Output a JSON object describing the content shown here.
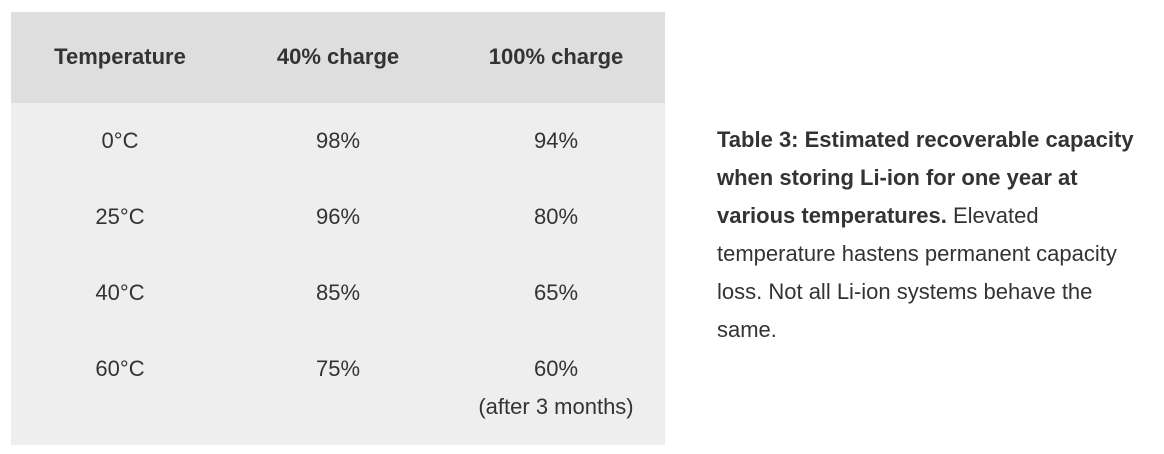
{
  "table": {
    "columns": [
      "Temperature",
      "40% charge",
      "100% charge"
    ],
    "rows": [
      {
        "temperature": "0°C",
        "charge40": "98%",
        "charge100": "94%",
        "note": ""
      },
      {
        "temperature": "25°C",
        "charge40": "96%",
        "charge100": "80%",
        "note": ""
      },
      {
        "temperature": "40°C",
        "charge40": "85%",
        "charge100": "65%",
        "note": ""
      },
      {
        "temperature": "60°C",
        "charge40": "75%",
        "charge100": "60%",
        "note": "(after 3 months)"
      }
    ]
  },
  "caption": {
    "bold_text": "Table 3: Estimated recoverable capacity when storing Li-ion for one year at various temperatures.",
    "regular_text": "Elevated temperature hastens permanent capacity loss. Not all Li-ion systems behave the same."
  },
  "colors": {
    "header_bg": "#dedede",
    "body_bg": "#eeeeee",
    "text": "#333333",
    "page_bg": "#ffffff"
  },
  "chart_data": {
    "type": "table",
    "title": "Estimated recoverable capacity when storing Li-ion for one year at various temperatures",
    "columns": [
      "Temperature",
      "40% charge",
      "100% charge"
    ],
    "rows": [
      [
        "0°C",
        "98%",
        "94%"
      ],
      [
        "25°C",
        "96%",
        "80%"
      ],
      [
        "40°C",
        "85%",
        "65%"
      ],
      [
        "60°C",
        "75%",
        "60% (after 3 months)"
      ]
    ]
  }
}
